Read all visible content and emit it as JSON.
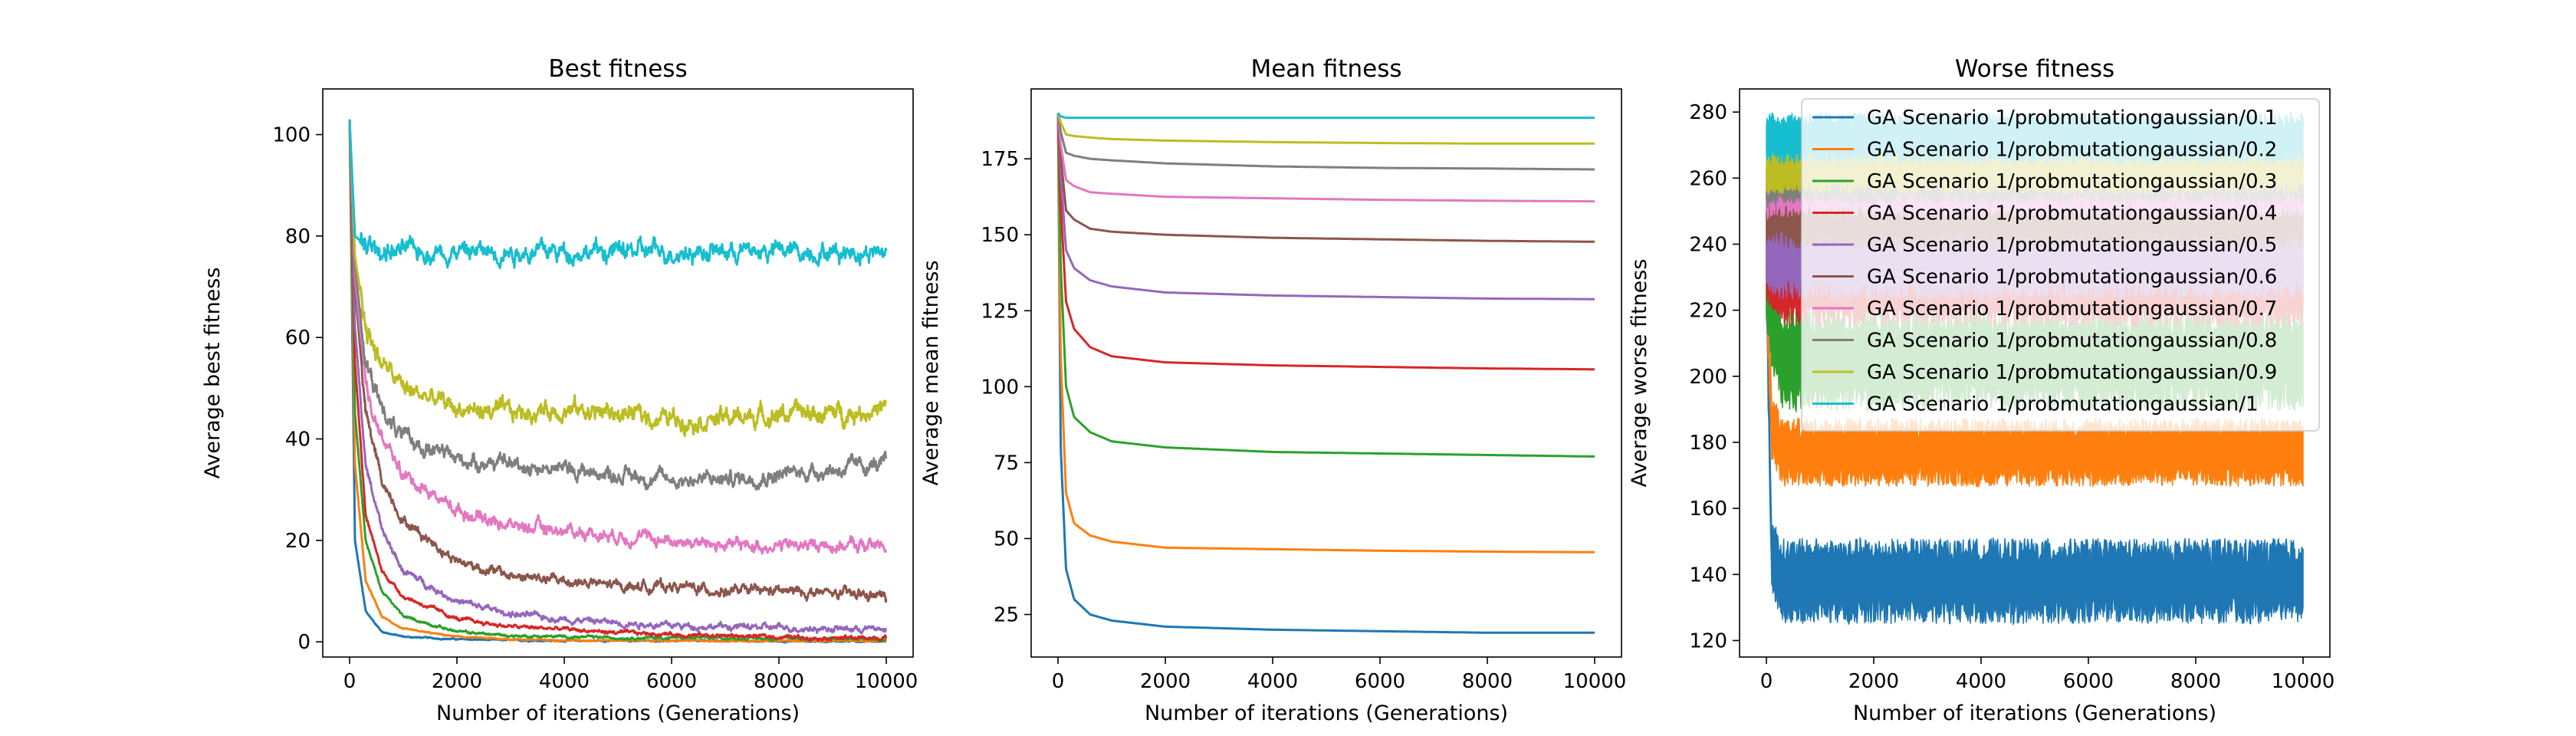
{
  "legend": {
    "entries": [
      "GA Scenario 1/probmutationgaussian/0.1",
      "GA Scenario 1/probmutationgaussian/0.2",
      "GA Scenario 1/probmutationgaussian/0.3",
      "GA Scenario 1/probmutationgaussian/0.4",
      "GA Scenario 1/probmutationgaussian/0.5",
      "GA Scenario 1/probmutationgaussian/0.6",
      "GA Scenario 1/probmutationgaussian/0.7",
      "GA Scenario 1/probmutationgaussian/0.8",
      "GA Scenario 1/probmutationgaussian/0.9",
      "GA Scenario 1/probmutationgaussian/1"
    ],
    "placement": "upper right of third chart"
  },
  "colors": [
    "#1f77b4",
    "#ff7f0e",
    "#2ca02c",
    "#d62728",
    "#9467bd",
    "#8c564b",
    "#e377c2",
    "#7f7f7f",
    "#bcbd22",
    "#17becf"
  ],
  "chart_data": [
    {
      "type": "line",
      "title": "Best fitness",
      "xlabel": "Number of iterations (Generations)",
      "ylabel": "Average best fitness",
      "xlim": [
        -500,
        10500
      ],
      "ylim": [
        -3,
        109
      ],
      "xticks": [
        0,
        2000,
        4000,
        6000,
        8000,
        10000
      ],
      "xtick_labels": [
        "0",
        "2000",
        "4000",
        "6000",
        "8000",
        "10000"
      ],
      "yticks": [
        0,
        20,
        40,
        60,
        80,
        100
      ],
      "ytick_labels": [
        "0",
        "20",
        "40",
        "60",
        "80",
        "100"
      ],
      "grid": false,
      "x": [
        0,
        100,
        300,
        600,
        1000,
        2000,
        3000,
        4000,
        5000,
        6000,
        7000,
        8000,
        9000,
        10000
      ],
      "series": [
        {
          "values": [
            103,
            20,
            6,
            2,
            1,
            0.5,
            0.3,
            0.2,
            0.2,
            0.2,
            0.2,
            0.1,
            0.1,
            0.1
          ],
          "noise": 0.1
        },
        {
          "values": [
            103,
            35,
            12,
            5,
            2.5,
            1,
            0.5,
            0.3,
            0.3,
            0.2,
            0.2,
            0.2,
            0.2,
            0.2
          ],
          "noise": 0.1
        },
        {
          "values": [
            103,
            45,
            20,
            10,
            5,
            2,
            1.2,
            1,
            0.8,
            0.8,
            0.7,
            0.7,
            0.6,
            0.6
          ],
          "noise": 0.2
        },
        {
          "values": [
            103,
            55,
            25,
            14,
            9,
            4.5,
            3,
            2.5,
            1.8,
            1.5,
            1.2,
            1,
            0.8,
            0.7
          ],
          "noise": 0.3
        },
        {
          "values": [
            103,
            62,
            35,
            22,
            14,
            8,
            5.5,
            4.5,
            3.8,
            3.2,
            3,
            2.8,
            2.6,
            2.5
          ],
          "noise": 0.5
        },
        {
          "values": [
            103,
            70,
            45,
            32,
            24,
            16,
            13,
            12,
            11,
            11,
            10,
            10,
            9.5,
            9
          ],
          "noise": 0.8
        },
        {
          "values": [
            103,
            72,
            50,
            40,
            33,
            26,
            23,
            22,
            21,
            20,
            19,
            19,
            19,
            19
          ],
          "noise": 1.0
        },
        {
          "values": [
            103,
            74,
            55,
            46,
            40,
            36,
            35,
            34,
            33,
            32,
            32,
            33,
            34,
            35
          ],
          "noise": 1.2
        },
        {
          "values": [
            103,
            76,
            62,
            55,
            50,
            46,
            45,
            46,
            45,
            44,
            44,
            45,
            45,
            46
          ],
          "noise": 1.5
        },
        {
          "values": [
            103,
            80,
            78,
            77,
            77,
            77,
            77,
            77,
            77,
            77,
            77,
            77,
            77,
            77
          ],
          "noise": 1.5
        }
      ]
    },
    {
      "type": "line",
      "title": "Mean fitness",
      "xlabel": "Number of iterations (Generations)",
      "ylabel": "Average mean fitness",
      "xlim": [
        -500,
        10500
      ],
      "ylim": [
        11,
        198
      ],
      "xticks": [
        0,
        2000,
        4000,
        6000,
        8000,
        10000
      ],
      "xtick_labels": [
        "0",
        "2000",
        "4000",
        "6000",
        "8000",
        "10000"
      ],
      "yticks": [
        25,
        50,
        75,
        100,
        125,
        150,
        175
      ],
      "ytick_labels": [
        "25",
        "50",
        "75",
        "100",
        "125",
        "150",
        "175"
      ],
      "grid": false,
      "x": [
        0,
        50,
        150,
        300,
        600,
        1000,
        2000,
        4000,
        6000,
        8000,
        10000
      ],
      "series": [
        {
          "values": [
            190,
            80,
            40,
            30,
            25,
            23,
            21,
            20,
            19.5,
            19,
            19
          ],
          "noise": 0
        },
        {
          "values": [
            190,
            110,
            65,
            55,
            51,
            49,
            47,
            46.5,
            46,
            45.7,
            45.5
          ],
          "noise": 0
        },
        {
          "values": [
            190,
            140,
            100,
            90,
            85,
            82,
            80,
            78.5,
            78,
            77.5,
            77
          ],
          "noise": 0
        },
        {
          "values": [
            190,
            160,
            128,
            119,
            113,
            110,
            108,
            107,
            106.5,
            106,
            105.7
          ],
          "noise": 0
        },
        {
          "values": [
            190,
            170,
            145,
            139,
            135,
            133,
            131,
            130,
            129.5,
            129,
            128.8
          ],
          "noise": 0
        },
        {
          "values": [
            190,
            176,
            158,
            155,
            152,
            151,
            150,
            149,
            148.5,
            148,
            147.7
          ],
          "noise": 0
        },
        {
          "values": [
            190,
            180,
            168,
            166,
            164,
            163.5,
            162.5,
            162,
            161.5,
            161.2,
            161
          ],
          "noise": 0
        },
        {
          "values": [
            190,
            184,
            177,
            176,
            175,
            174.5,
            173.5,
            172.5,
            172,
            171.8,
            171.5
          ],
          "noise": 0
        },
        {
          "values": [
            190,
            187,
            183,
            182.5,
            182,
            181.5,
            181,
            180.5,
            180.2,
            180,
            180
          ],
          "noise": 0
        },
        {
          "values": [
            190,
            189,
            188.5,
            188.5,
            188.5,
            188.5,
            188.5,
            188.5,
            188.5,
            188.5,
            188.5
          ],
          "noise": 0
        }
      ]
    },
    {
      "type": "line",
      "title": "Worse fitness",
      "xlabel": "Number of iterations (Generations)",
      "ylabel": "Average worse fitness",
      "xlim": [
        -500,
        10500
      ],
      "ylim": [
        115,
        287
      ],
      "xticks": [
        0,
        2000,
        4000,
        6000,
        8000,
        10000
      ],
      "xtick_labels": [
        "0",
        "2000",
        "4000",
        "6000",
        "8000",
        "10000"
      ],
      "yticks": [
        120,
        140,
        160,
        180,
        200,
        220,
        240,
        260,
        280
      ],
      "ytick_labels": [
        "120",
        "140",
        "160",
        "180",
        "200",
        "220",
        "240",
        "260",
        "280"
      ],
      "grid": false,
      "x": [
        0,
        100,
        300,
        10000
      ],
      "series": [
        {
          "values": [
            230,
            145,
            138,
            138
          ],
          "noise": 5
        },
        {
          "values": [
            230,
            185,
            177,
            177
          ],
          "noise": 4
        },
        {
          "values": [
            230,
            215,
            205,
            205
          ],
          "noise": 6
        },
        {
          "values": [
            235,
            232,
            228,
            228
          ],
          "noise": 5
        },
        {
          "values": [
            240,
            238,
            236,
            236
          ],
          "noise": 5
        },
        {
          "values": [
            250,
            250,
            249,
            249
          ],
          "noise": 4
        },
        {
          "values": [
            255,
            256,
            256,
            256
          ],
          "noise": 3
        },
        {
          "values": [
            258,
            259,
            260,
            260
          ],
          "noise": 3
        },
        {
          "values": [
            262,
            263,
            263,
            263
          ],
          "noise": 3
        },
        {
          "values": [
            272,
            272,
            272,
            272
          ],
          "noise": 3
        }
      ]
    }
  ]
}
